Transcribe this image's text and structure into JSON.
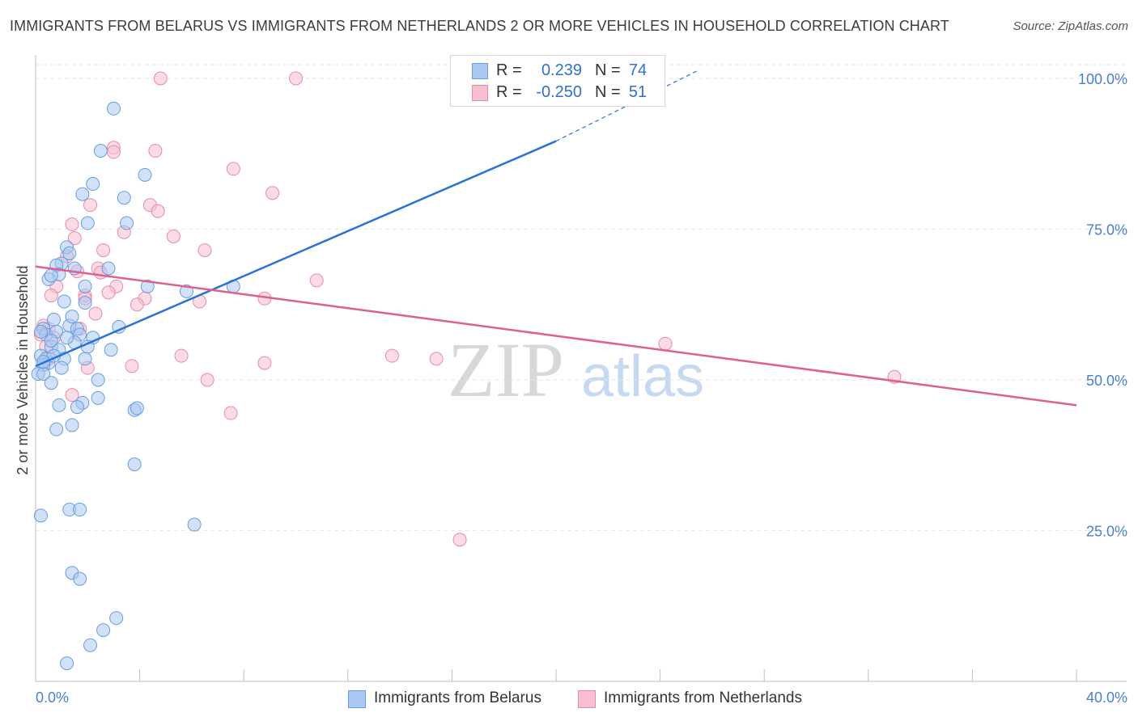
{
  "title": "IMMIGRANTS FROM BELARUS VS IMMIGRANTS FROM NETHERLANDS 2 OR MORE VEHICLES IN HOUSEHOLD CORRELATION CHART",
  "source": "Source: ZipAtlas.com",
  "watermark": {
    "zip": "ZIP",
    "atlas": "atlas"
  },
  "colors": {
    "belarus_fill": "#a9c8f2",
    "belarus_stroke": "#6a9de0",
    "belarus_line": "#2a72d5",
    "netherlands_fill": "#f7bfd0",
    "netherlands_stroke": "#e98aa8",
    "netherlands_line": "#e0608a",
    "axis_label": "#4a7fd1"
  },
  "stats": [
    {
      "r_label": "R =",
      "r_value": "0.239",
      "n_label": "N =",
      "n_value": "74"
    },
    {
      "r_label": "R =",
      "r_value": "-0.250",
      "n_label": "N =",
      "n_value": "51"
    }
  ],
  "legend": [
    "Immigrants from Belarus",
    "Immigrants from Netherlands"
  ],
  "chart_data": {
    "type": "scatter",
    "xlabel": "",
    "ylabel": "2 or more Vehicles in Household",
    "xlim": [
      0,
      40
    ],
    "ylim": [
      0,
      103
    ],
    "x_tick_labels": [
      {
        "value": 0,
        "label": "0.0%"
      },
      {
        "value": 40,
        "label": "40.0%"
      }
    ],
    "x_minor_ticks": [
      0,
      4,
      8,
      12,
      16,
      20,
      24,
      28,
      32,
      36,
      40
    ],
    "y_ticks": [
      {
        "value": 25,
        "label": "25.0%"
      },
      {
        "value": 50,
        "label": "50.0%"
      },
      {
        "value": 75,
        "label": "75.0%"
      },
      {
        "value": 100,
        "label": "100.0%"
      }
    ],
    "grid": "horizontal dashed",
    "series": [
      {
        "name": "Immigrants from Belarus",
        "trend": {
          "x0": 0,
          "y0": 52.3,
          "x1": 20,
          "y1": 89.6,
          "dashed_to_x": 25.4,
          "dashed_to_y": 101.2
        },
        "points": [
          [
            3.0,
            95.0
          ],
          [
            2.5,
            88.0
          ],
          [
            3.4,
            80.2
          ],
          [
            2.2,
            82.5
          ],
          [
            1.8,
            80.8
          ],
          [
            4.2,
            84.0
          ],
          [
            2.0,
            76.0
          ],
          [
            3.5,
            76.0
          ],
          [
            1.2,
            72.0
          ],
          [
            1.3,
            71.0
          ],
          [
            1.0,
            69.3
          ],
          [
            0.8,
            69.0
          ],
          [
            1.5,
            68.5
          ],
          [
            2.8,
            68.5
          ],
          [
            0.9,
            67.5
          ],
          [
            0.5,
            66.7
          ],
          [
            0.6,
            67.3
          ],
          [
            1.9,
            65.5
          ],
          [
            4.3,
            65.5
          ],
          [
            5.8,
            64.7
          ],
          [
            7.6,
            65.5
          ],
          [
            1.1,
            63.0
          ],
          [
            1.9,
            62.8
          ],
          [
            0.3,
            58.5
          ],
          [
            0.7,
            60.0
          ],
          [
            1.3,
            59.0
          ],
          [
            1.6,
            58.5
          ],
          [
            0.4,
            57.5
          ],
          [
            0.8,
            58.0
          ],
          [
            3.2,
            58.8
          ],
          [
            1.7,
            57.5
          ],
          [
            2.2,
            57.0
          ],
          [
            1.5,
            56.2
          ],
          [
            0.6,
            55.5
          ],
          [
            0.9,
            55.0
          ],
          [
            2.9,
            55.0
          ],
          [
            1.1,
            53.5
          ],
          [
            0.2,
            54.0
          ],
          [
            0.4,
            53.5
          ],
          [
            0.5,
            52.8
          ],
          [
            1.9,
            53.5
          ],
          [
            0.3,
            52.5
          ],
          [
            0.1,
            51.0
          ],
          [
            0.3,
            51.0
          ],
          [
            2.4,
            50.0
          ],
          [
            0.6,
            49.5
          ],
          [
            2.4,
            47.0
          ],
          [
            1.8,
            46.2
          ],
          [
            0.9,
            45.8
          ],
          [
            1.6,
            45.5
          ],
          [
            3.8,
            45.0
          ],
          [
            3.9,
            45.3
          ],
          [
            1.4,
            42.5
          ],
          [
            0.8,
            41.8
          ],
          [
            3.8,
            36.0
          ],
          [
            0.2,
            27.5
          ],
          [
            1.3,
            28.5
          ],
          [
            1.7,
            28.5
          ],
          [
            6.1,
            26.0
          ],
          [
            1.4,
            18.0
          ],
          [
            1.7,
            17.0
          ],
          [
            3.1,
            10.5
          ],
          [
            2.6,
            8.5
          ],
          [
            2.1,
            6.0
          ],
          [
            1.2,
            3.0
          ],
          [
            18.7,
            100.5
          ],
          [
            0.2,
            58.0
          ],
          [
            0.6,
            56.5
          ],
          [
            1.0,
            52.0
          ],
          [
            1.4,
            60.5
          ],
          [
            2.0,
            55.5
          ],
          [
            0.7,
            54.0
          ],
          [
            1.2,
            57.0
          ],
          [
            0.3,
            53.0
          ]
        ]
      },
      {
        "name": "Immigrants from Netherlands",
        "trend": {
          "x0": 0,
          "y0": 68.8,
          "x1": 40,
          "y1": 45.8
        },
        "points": [
          [
            4.8,
            100.0
          ],
          [
            10.0,
            100.0
          ],
          [
            3.0,
            88.5
          ],
          [
            3.0,
            87.8
          ],
          [
            4.6,
            88.0
          ],
          [
            7.6,
            85.0
          ],
          [
            9.1,
            81.0
          ],
          [
            2.1,
            79.0
          ],
          [
            4.4,
            79.0
          ],
          [
            4.7,
            78.0
          ],
          [
            1.4,
            75.8
          ],
          [
            3.4,
            74.5
          ],
          [
            5.3,
            73.8
          ],
          [
            1.5,
            73.5
          ],
          [
            6.5,
            71.5
          ],
          [
            2.6,
            71.5
          ],
          [
            1.2,
            70.5
          ],
          [
            2.4,
            68.5
          ],
          [
            2.5,
            67.8
          ],
          [
            1.6,
            68.0
          ],
          [
            10.8,
            66.5
          ],
          [
            3.1,
            65.5
          ],
          [
            0.8,
            65.5
          ],
          [
            2.8,
            64.5
          ],
          [
            1.9,
            64.0
          ],
          [
            0.6,
            64.0
          ],
          [
            4.2,
            63.5
          ],
          [
            6.3,
            63.0
          ],
          [
            8.8,
            63.5
          ],
          [
            3.9,
            62.5
          ],
          [
            2.3,
            61.0
          ],
          [
            1.7,
            58.5
          ],
          [
            0.3,
            59.0
          ],
          [
            0.5,
            58.5
          ],
          [
            0.2,
            57.5
          ],
          [
            0.7,
            57.0
          ],
          [
            0.4,
            55.5
          ],
          [
            0.5,
            53.5
          ],
          [
            24.2,
            56.0
          ],
          [
            13.7,
            54.0
          ],
          [
            15.4,
            53.5
          ],
          [
            5.6,
            54.0
          ],
          [
            8.8,
            52.8
          ],
          [
            3.7,
            52.3
          ],
          [
            2.0,
            52.0
          ],
          [
            6.6,
            50.0
          ],
          [
            33.0,
            50.5
          ],
          [
            1.4,
            47.5
          ],
          [
            7.5,
            44.5
          ],
          [
            16.3,
            23.5
          ],
          [
            1.9,
            63.5
          ]
        ]
      }
    ]
  }
}
